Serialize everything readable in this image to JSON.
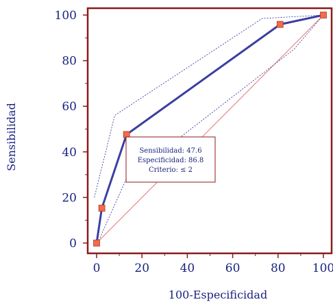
{
  "chart_data": {
    "type": "line",
    "xlabel": "100-Especificidad",
    "ylabel": "Sensibilidad",
    "xlim": [
      -4,
      104
    ],
    "ylim": [
      -4,
      104
    ],
    "x_ticks": [
      0,
      20,
      40,
      60,
      80,
      100
    ],
    "y_ticks": [
      0,
      20,
      40,
      60,
      80,
      100
    ],
    "x_tick_labels": [
      "0",
      "20",
      "40",
      "60",
      "80",
      "100"
    ],
    "y_tick_labels": [
      "0",
      "20",
      "40",
      "60",
      "80",
      "100"
    ],
    "roc_curve": {
      "x": [
        0,
        2.3,
        13.2,
        80.9,
        100
      ],
      "y": [
        0,
        15.3,
        47.6,
        95.9,
        100
      ]
    },
    "confidence_upper": {
      "x": [
        -1,
        8,
        73,
        100
      ],
      "y": [
        20,
        56,
        98.5,
        100
      ]
    },
    "confidence_lower": {
      "x": [
        0,
        13,
        87,
        100
      ],
      "y": [
        -1,
        28,
        85,
        100
      ]
    },
    "reference_line": {
      "x": [
        0,
        100
      ],
      "y": [
        0,
        100
      ]
    },
    "annotation": {
      "lines": [
        "Sensibilidad: 47.6",
        "Especificidad: 86.8",
        "Criterio: ≤ 2"
      ]
    },
    "colors": {
      "frame": "#8b1a1a",
      "curve": "#3b3fa0",
      "marker": "#f26b4a",
      "diagonal": "#e57373",
      "text": "#1a237e"
    }
  }
}
